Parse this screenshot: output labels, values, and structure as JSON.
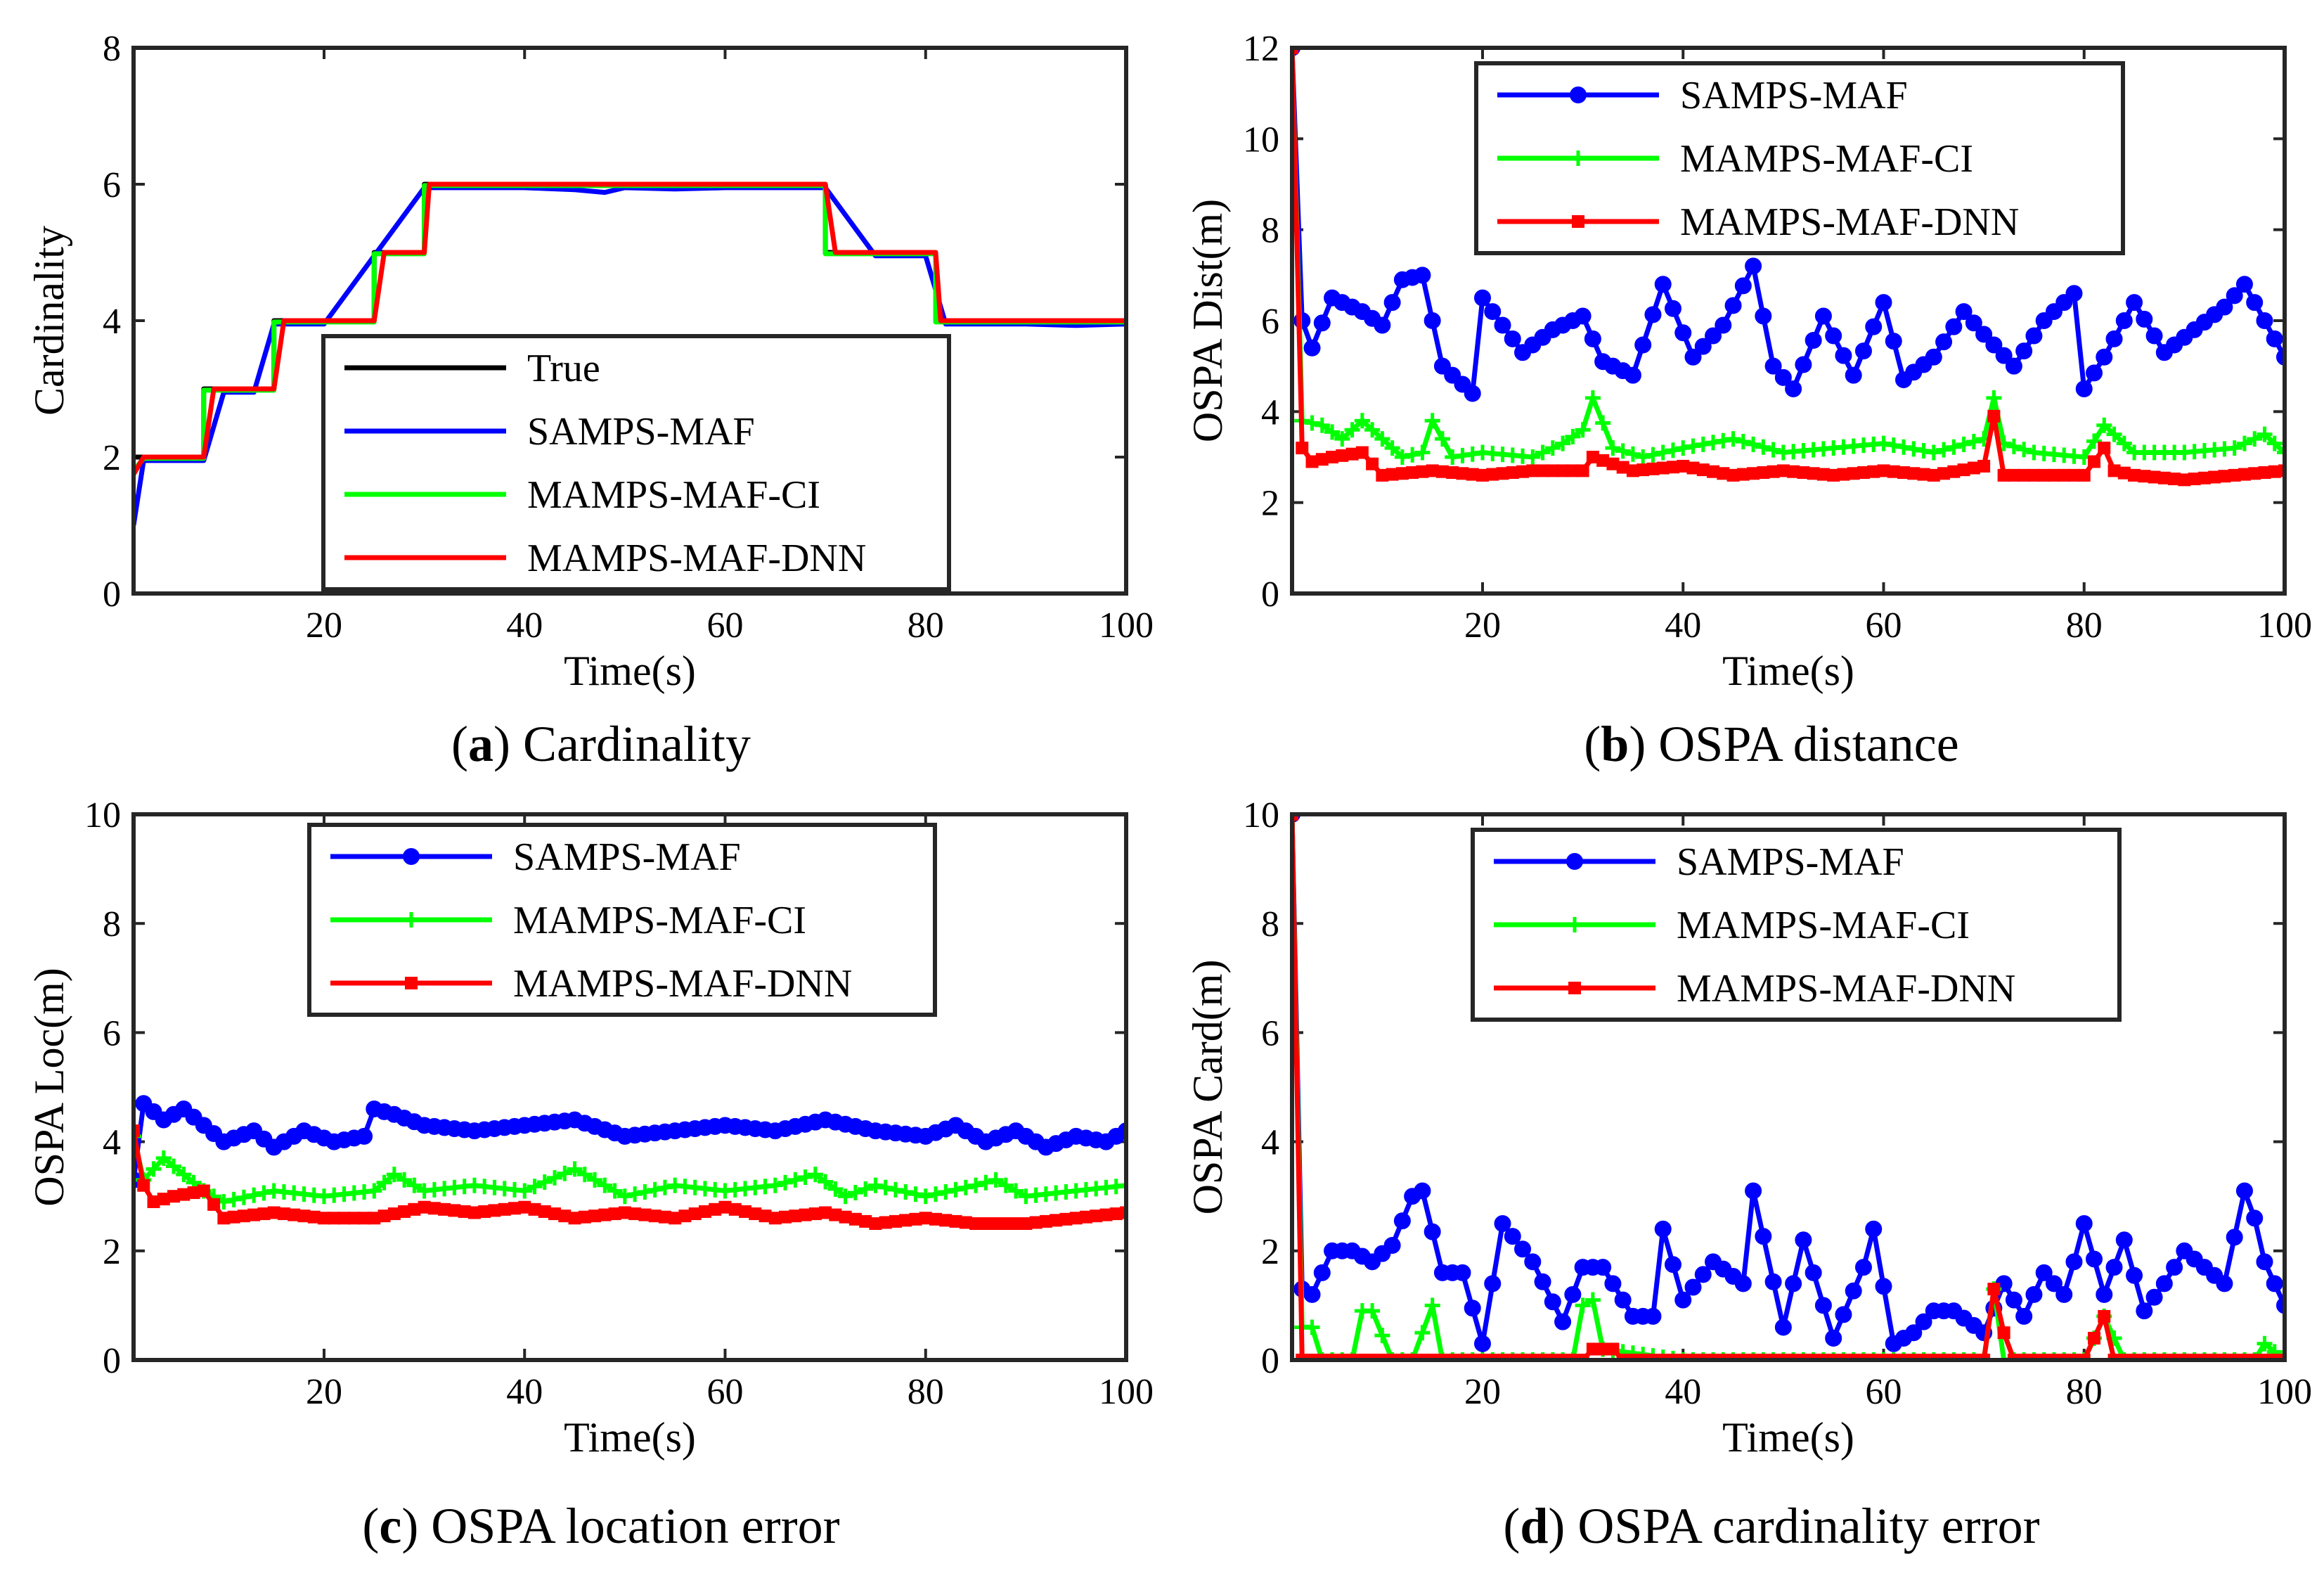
{
  "figure": {
    "captions": [
      {
        "letter": "a",
        "text": " Cardinality"
      },
      {
        "letter": "b",
        "text": " OSPA distance"
      },
      {
        "letter": "c",
        "text": " OSPA location error"
      },
      {
        "letter": "d",
        "text": " OSPA cardinality error"
      }
    ]
  },
  "colors": {
    "True": "#000000",
    "SAMPS-MAF": "#0000ff",
    "MAMPS-MAF-CI": "#00ff00",
    "MAMPS-MAF-DNN": "#ff0000"
  },
  "chart_data": [
    {
      "type": "line",
      "title": "",
      "caption": "(a) Cardinality",
      "xlabel": "Time(s)",
      "ylabel": "Cardinality",
      "xlim": [
        1,
        100
      ],
      "ylim": [
        0,
        8
      ],
      "xticks": [
        20,
        40,
        60,
        80,
        100
      ],
      "yticks": [
        0,
        2,
        4,
        6,
        8
      ],
      "legend": [
        "True",
        "SAMPS-MAF",
        "MAMPS-MAF-CI",
        "MAMPS-MAF-DNN"
      ],
      "legend_position": "bottom-center",
      "series": [
        {
          "name": "True",
          "marker": "none",
          "x": [
            1,
            2,
            2,
            8,
            8,
            15,
            15,
            25,
            25,
            30,
            30,
            70,
            70,
            81,
            81,
            100
          ],
          "y": [
            2,
            2,
            2,
            2,
            3,
            3,
            4,
            4,
            5,
            5,
            6,
            6,
            5,
            5,
            4,
            4
          ]
        },
        {
          "name": "SAMPS-MAF",
          "marker": "none",
          "x": [
            1,
            2,
            5,
            8,
            10,
            13,
            15,
            20,
            25,
            30,
            35,
            40,
            45,
            48,
            50,
            55,
            60,
            65,
            70,
            75,
            80,
            82,
            85,
            90,
            95,
            100
          ],
          "y": [
            1,
            1.95,
            1.95,
            1.95,
            2.95,
            2.95,
            3.95,
            3.95,
            4.95,
            5.95,
            5.95,
            5.95,
            5.92,
            5.88,
            5.95,
            5.93,
            5.95,
            5.95,
            5.95,
            4.95,
            4.95,
            3.95,
            3.95,
            3.95,
            3.93,
            3.95
          ]
        },
        {
          "name": "MAMPS-MAF-CI",
          "marker": "none",
          "x": [
            1,
            2,
            8,
            8,
            15,
            15,
            25,
            25,
            30,
            30,
            70,
            70,
            81,
            81,
            100
          ],
          "y": [
            1.8,
            1.98,
            1.98,
            2.98,
            2.98,
            3.98,
            3.98,
            4.98,
            4.98,
            5.98,
            5.98,
            4.98,
            4.98,
            3.98,
            3.98
          ]
        },
        {
          "name": "MAMPS-MAF-DNN",
          "marker": "none",
          "x": [
            1,
            2,
            8,
            9,
            15,
            16,
            25,
            26,
            30,
            30.5,
            70,
            71,
            81,
            81.5,
            100
          ],
          "y": [
            1.75,
            2,
            2,
            3,
            3,
            4,
            4,
            5,
            5,
            6,
            6,
            5,
            5,
            4,
            4
          ]
        }
      ]
    },
    {
      "type": "line",
      "title": "",
      "caption": "(b) OSPA distance",
      "xlabel": "Time(s)",
      "ylabel": "OSPA Dist(m)",
      "xlim": [
        1,
        100
      ],
      "ylim": [
        0,
        12
      ],
      "xticks": [
        20,
        40,
        60,
        80,
        100
      ],
      "yticks": [
        0,
        2,
        4,
        6,
        8,
        10,
        12
      ],
      "legend": [
        "SAMPS-MAF",
        "MAMPS-MAF-CI",
        "MAMPS-MAF-DNN"
      ],
      "legend_position": "top-center",
      "series": [
        {
          "name": "SAMPS-MAF",
          "marker": "circle",
          "x": [
            1,
            2,
            3,
            5,
            8,
            10,
            12,
            14,
            16,
            19,
            20,
            24,
            27,
            30,
            32,
            35,
            38,
            41,
            44,
            47,
            49,
            51,
            54,
            57,
            60,
            62,
            65,
            68,
            70,
            73,
            76,
            79,
            80,
            82,
            85,
            88,
            91,
            94,
            96,
            98,
            100
          ],
          "y": [
            12,
            6.0,
            5.4,
            6.5,
            6.2,
            5.9,
            6.9,
            7.0,
            5.0,
            4.4,
            6.5,
            5.3,
            5.8,
            6.1,
            5.1,
            4.8,
            6.8,
            5.2,
            5.9,
            7.2,
            5.0,
            4.5,
            6.1,
            4.8,
            6.4,
            4.7,
            5.2,
            6.2,
            5.7,
            5.0,
            6.0,
            6.6,
            4.5,
            5.2,
            6.4,
            5.3,
            5.8,
            6.3,
            6.8,
            6.0,
            5.2
          ]
        },
        {
          "name": "MAMPS-MAF-CI",
          "marker": "plus",
          "x": [
            1,
            2,
            4,
            6,
            8,
            10,
            12,
            14,
            15,
            17,
            20,
            25,
            28,
            30,
            31,
            33,
            36,
            40,
            45,
            50,
            55,
            60,
            65,
            70,
            71,
            72,
            75,
            80,
            82,
            85,
            90,
            95,
            98,
            100
          ],
          "y": [
            12,
            3.8,
            3.7,
            3.4,
            3.8,
            3.4,
            3.0,
            3.1,
            3.8,
            3.0,
            3.1,
            3.0,
            3.3,
            3.6,
            4.3,
            3.2,
            3.0,
            3.2,
            3.4,
            3.1,
            3.2,
            3.3,
            3.1,
            3.4,
            4.3,
            3.3,
            3.1,
            3.0,
            3.7,
            3.1,
            3.1,
            3.2,
            3.5,
            3.1
          ]
        },
        {
          "name": "MAMPS-MAF-DNN",
          "marker": "square",
          "x": [
            1,
            2,
            3,
            5,
            8,
            10,
            15,
            20,
            25,
            30,
            31,
            35,
            40,
            45,
            50,
            55,
            60,
            65,
            70,
            71,
            72,
            75,
            80,
            82,
            83,
            85,
            90,
            95,
            100
          ],
          "y": [
            12,
            3.2,
            2.9,
            3.0,
            3.1,
            2.6,
            2.7,
            2.6,
            2.7,
            2.7,
            3.0,
            2.7,
            2.8,
            2.6,
            2.7,
            2.6,
            2.7,
            2.6,
            2.8,
            3.9,
            2.6,
            2.6,
            2.6,
            3.2,
            2.7,
            2.6,
            2.5,
            2.6,
            2.7
          ]
        }
      ]
    },
    {
      "type": "line",
      "title": "",
      "caption": "(c) OSPA location error",
      "xlabel": "Time(s)",
      "ylabel": "OSPA Loc(m)",
      "xlim": [
        1,
        100
      ],
      "ylim": [
        0,
        10
      ],
      "xticks": [
        20,
        40,
        60,
        80,
        100
      ],
      "yticks": [
        0,
        2,
        4,
        6,
        8,
        10
      ],
      "legend": [
        "SAMPS-MAF",
        "MAMPS-MAF-CI",
        "MAMPS-MAF-DNN"
      ],
      "legend_position": "top-center",
      "series": [
        {
          "name": "SAMPS-MAF",
          "marker": "circle",
          "x": [
            1,
            2,
            4,
            6,
            8,
            10,
            13,
            15,
            18,
            21,
            24,
            25,
            27,
            30,
            35,
            40,
            45,
            50,
            55,
            60,
            65,
            70,
            75,
            80,
            83,
            86,
            89,
            92,
            95,
            98,
            100
          ],
          "y": [
            3.3,
            4.7,
            4.4,
            4.6,
            4.3,
            4.0,
            4.2,
            3.9,
            4.2,
            4.0,
            4.1,
            4.6,
            4.5,
            4.3,
            4.2,
            4.3,
            4.4,
            4.1,
            4.2,
            4.3,
            4.2,
            4.4,
            4.2,
            4.1,
            4.3,
            4.0,
            4.2,
            3.9,
            4.1,
            4.0,
            4.2
          ]
        },
        {
          "name": "MAMPS-MAF-CI",
          "marker": "plus",
          "x": [
            1,
            2,
            4,
            6,
            8,
            10,
            15,
            20,
            25,
            27,
            30,
            35,
            40,
            45,
            50,
            55,
            60,
            65,
            69,
            72,
            75,
            80,
            85,
            87,
            90,
            95,
            100
          ],
          "y": [
            4.1,
            3.3,
            3.7,
            3.4,
            3.1,
            2.9,
            3.1,
            3.0,
            3.1,
            3.4,
            3.1,
            3.2,
            3.1,
            3.5,
            3.0,
            3.2,
            3.1,
            3.2,
            3.4,
            3.0,
            3.2,
            3.0,
            3.2,
            3.3,
            3.0,
            3.1,
            3.2
          ]
        },
        {
          "name": "MAMPS-MAF-DNN",
          "marker": "square",
          "x": [
            1,
            2,
            3,
            5,
            8,
            10,
            15,
            20,
            25,
            30,
            35,
            40,
            45,
            50,
            55,
            60,
            65,
            70,
            75,
            80,
            85,
            90,
            95,
            100
          ],
          "y": [
            4.2,
            3.2,
            2.9,
            3.0,
            3.1,
            2.6,
            2.7,
            2.6,
            2.6,
            2.8,
            2.7,
            2.8,
            2.6,
            2.7,
            2.6,
            2.8,
            2.6,
            2.7,
            2.5,
            2.6,
            2.5,
            2.5,
            2.6,
            2.7
          ]
        }
      ]
    },
    {
      "type": "line",
      "title": "",
      "caption": "(d) OSPA cardinality error",
      "xlabel": "Time(s)",
      "ylabel": "OSPA Card(m)",
      "xlim": [
        1,
        100
      ],
      "ylim": [
        0,
        10
      ],
      "xticks": [
        20,
        40,
        60,
        80,
        100
      ],
      "yticks": [
        0,
        2,
        4,
        6,
        8,
        10
      ],
      "legend": [
        "SAMPS-MAF",
        "MAMPS-MAF-CI",
        "MAMPS-MAF-DNN"
      ],
      "legend_position": "top-center",
      "series": [
        {
          "name": "SAMPS-MAF",
          "marker": "circle",
          "x": [
            1,
            2,
            3,
            5,
            7,
            9,
            11,
            13,
            14,
            16,
            18,
            20,
            22,
            25,
            28,
            30,
            32,
            35,
            37,
            38,
            40,
            43,
            46,
            47,
            50,
            52,
            55,
            58,
            59,
            61,
            63,
            65,
            67,
            70,
            72,
            74,
            76,
            78,
            79,
            80,
            82,
            84,
            86,
            88,
            90,
            92,
            94,
            96,
            97,
            98,
            100
          ],
          "y": [
            10,
            1.3,
            1.2,
            2.0,
            2.0,
            1.8,
            2.1,
            3.0,
            3.1,
            1.6,
            1.6,
            0.3,
            2.5,
            1.8,
            0.7,
            1.7,
            1.7,
            0.8,
            0.8,
            2.4,
            1.1,
            1.8,
            1.4,
            3.1,
            0.6,
            2.2,
            0.4,
            1.7,
            2.4,
            0.3,
            0.5,
            0.9,
            0.9,
            0.5,
            1.4,
            0.8,
            1.6,
            1.2,
            1.8,
            2.5,
            1.2,
            2.2,
            0.9,
            1.4,
            2.0,
            1.7,
            1.4,
            3.1,
            2.6,
            1.8,
            1.0
          ]
        },
        {
          "name": "MAMPS-MAF-CI",
          "marker": "plus",
          "x": [
            1,
            2,
            3,
            4,
            7,
            8,
            9,
            11,
            13,
            15,
            16,
            29,
            30,
            31,
            32,
            40,
            60,
            70,
            71,
            72,
            80,
            82,
            84,
            97,
            98,
            100
          ],
          "y": [
            10,
            0.6,
            0.6,
            0,
            0,
            0.9,
            0.9,
            0,
            0,
            1.0,
            0,
            0,
            1.0,
            1.1,
            0.2,
            0,
            0,
            0,
            1.3,
            0,
            0,
            0.8,
            0,
            0,
            0.3,
            0
          ]
        },
        {
          "name": "MAMPS-MAF-DNN",
          "marker": "square",
          "x": [
            1,
            2,
            10,
            20,
            30,
            31,
            33,
            34,
            40,
            50,
            60,
            70,
            71,
            72,
            73,
            80,
            82,
            83,
            90,
            100
          ],
          "y": [
            10,
            0,
            0,
            0,
            0,
            0.2,
            0.2,
            0,
            0,
            0,
            0,
            0,
            1.3,
            0.5,
            0,
            0,
            0.8,
            0,
            0,
            0
          ]
        }
      ]
    }
  ]
}
